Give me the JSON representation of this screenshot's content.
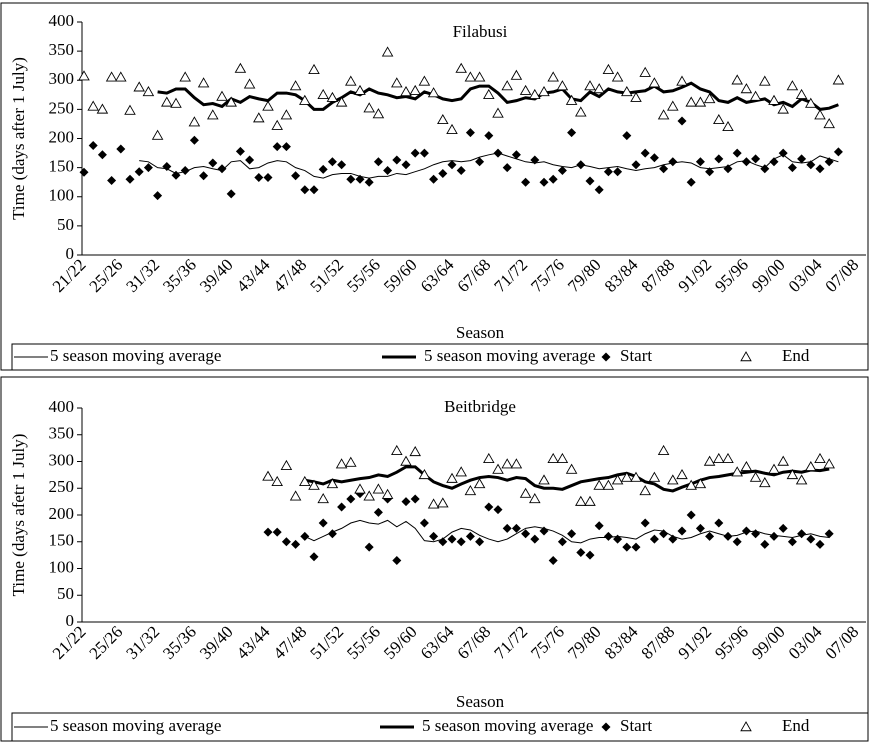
{
  "chart_data": [
    {
      "type": "combo",
      "title": "Filabusi",
      "ylabel": "Time (days after 1 July)",
      "xlabel": "Season",
      "ylim": [
        0,
        400
      ],
      "yticks": [
        0,
        50,
        100,
        150,
        200,
        250,
        300,
        350,
        400
      ],
      "categories": [
        "21/22",
        null,
        null,
        null,
        "25/26",
        null,
        null,
        null,
        "31/32",
        null,
        null,
        null,
        "35/36",
        null,
        null,
        null,
        "39/40",
        null,
        null,
        null,
        "43/44",
        null,
        null,
        null,
        "47/48",
        null,
        null,
        null,
        "51/52",
        null,
        null,
        null,
        "55/56",
        null,
        null,
        null,
        "59/60",
        null,
        null,
        null,
        "63/64",
        null,
        null,
        null,
        "67/68",
        null,
        null,
        null,
        "71/72",
        null,
        null,
        null,
        "75/76",
        null,
        null,
        null,
        "79/80",
        null,
        null,
        null,
        "83/84",
        null,
        null,
        null,
        "87/88",
        null,
        null,
        null,
        "91/92",
        null,
        null,
        null,
        "95/96",
        null,
        null,
        null,
        "99/00",
        null,
        null,
        null,
        "03/04",
        null,
        null,
        null,
        "07/08",
        null
      ],
      "series": [
        {
          "name": "5 season moving average",
          "color": "#000000",
          "line_width": 1,
          "marker": "none",
          "values": [
            null,
            null,
            null,
            null,
            null,
            null,
            162,
            160,
            150,
            148,
            140,
            143,
            150,
            152,
            148,
            145,
            160,
            162,
            148,
            150,
            158,
            162,
            160,
            150,
            145,
            135,
            132,
            138,
            140,
            140,
            135,
            132,
            135,
            135,
            140,
            138,
            143,
            148,
            155,
            160,
            162,
            160,
            162,
            168,
            172,
            175,
            170,
            165,
            160,
            158,
            160,
            155,
            152,
            150,
            155,
            152,
            148,
            150,
            152,
            148,
            145,
            148,
            150,
            155,
            158,
            160,
            158,
            150,
            148,
            150,
            152,
            160,
            162,
            155,
            150,
            165,
            172,
            160,
            158,
            160,
            170,
            165,
            160,
            null,
            null,
            null
          ]
        },
        {
          "name": "5 season moving average",
          "color": "#000000",
          "line_width": 3,
          "marker": "none",
          "values": [
            null,
            null,
            null,
            null,
            null,
            null,
            null,
            null,
            280,
            278,
            285,
            285,
            270,
            258,
            260,
            255,
            268,
            262,
            272,
            268,
            265,
            278,
            278,
            275,
            265,
            250,
            250,
            262,
            270,
            280,
            275,
            285,
            278,
            275,
            270,
            272,
            268,
            280,
            275,
            268,
            265,
            268,
            285,
            290,
            290,
            278,
            262,
            265,
            270,
            268,
            278,
            280,
            285,
            268,
            265,
            280,
            272,
            285,
            280,
            278,
            280,
            282,
            290,
            280,
            282,
            288,
            295,
            285,
            280,
            265,
            262,
            270,
            262,
            265,
            268,
            258,
            262,
            255,
            268,
            262,
            250,
            252,
            258,
            null,
            null,
            null
          ]
        },
        {
          "name": "Start",
          "color": "#000000",
          "line_width": 0,
          "marker": "diamond",
          "values": [
            142,
            188,
            172,
            128,
            182,
            130,
            143,
            150,
            102,
            152,
            137,
            145,
            197,
            136,
            158,
            148,
            105,
            178,
            163,
            133,
            133,
            186,
            186,
            136,
            112,
            112,
            147,
            160,
            155,
            130,
            130,
            125,
            160,
            145,
            163,
            155,
            175,
            175,
            130,
            140,
            155,
            145,
            210,
            160,
            205,
            175,
            150,
            172,
            125,
            163,
            125,
            130,
            145,
            210,
            155,
            127,
            112,
            143,
            143,
            205,
            155,
            175,
            167,
            148,
            160,
            230,
            125,
            160,
            143,
            165,
            148,
            175,
            160,
            165,
            148,
            160,
            175,
            150,
            165,
            155,
            148,
            160,
            177,
            null,
            null,
            null
          ]
        },
        {
          "name": "End",
          "color": "#000000",
          "line_width": 0,
          "marker": "triangle",
          "values": [
            307,
            255,
            250,
            305,
            305,
            248,
            288,
            280,
            205,
            262,
            260,
            305,
            228,
            295,
            240,
            272,
            262,
            320,
            293,
            235,
            255,
            222,
            240,
            290,
            265,
            318,
            275,
            270,
            262,
            298,
            282,
            252,
            242,
            348,
            295,
            280,
            282,
            298,
            278,
            232,
            215,
            320,
            305,
            305,
            275,
            243,
            290,
            308,
            282,
            275,
            280,
            305,
            290,
            265,
            245,
            290,
            285,
            318,
            305,
            280,
            270,
            313,
            295,
            240,
            255,
            298,
            262,
            262,
            268,
            232,
            220,
            300,
            285,
            272,
            298,
            265,
            250,
            290,
            275,
            260,
            240,
            225,
            300,
            null,
            null,
            null
          ]
        }
      ]
    },
    {
      "type": "combo",
      "title": "Beitbridge",
      "ylabel": "Time (days afetr 1 July)",
      "xlabel": "Season",
      "ylim": [
        0,
        400
      ],
      "yticks": [
        0,
        50,
        100,
        150,
        200,
        250,
        300,
        350,
        400
      ],
      "categories": [
        "21/22",
        null,
        null,
        null,
        "25/26",
        null,
        null,
        null,
        "31/32",
        null,
        null,
        null,
        "35/36",
        null,
        null,
        null,
        "39/40",
        null,
        null,
        null,
        "43/44",
        null,
        null,
        null,
        "47/48",
        null,
        null,
        null,
        "51/52",
        null,
        null,
        null,
        "55/56",
        null,
        null,
        null,
        "59/60",
        null,
        null,
        null,
        "63/64",
        null,
        null,
        null,
        "67/68",
        null,
        null,
        null,
        "71/72",
        null,
        null,
        null,
        "75/76",
        null,
        null,
        null,
        "79/80",
        null,
        null,
        null,
        "83/84",
        null,
        null,
        null,
        "87/88",
        null,
        null,
        null,
        "91/92",
        null,
        null,
        null,
        "95/96",
        null,
        null,
        null,
        "99/00",
        null,
        null,
        null,
        "03/04",
        null,
        null,
        null,
        "07/08",
        null
      ],
      "series": [
        {
          "name": "5 season moving average",
          "color": "#000000",
          "line_width": 1,
          "marker": "none",
          "values": [
            null,
            null,
            null,
            null,
            null,
            null,
            null,
            null,
            null,
            null,
            null,
            null,
            null,
            null,
            null,
            null,
            null,
            null,
            null,
            null,
            null,
            null,
            null,
            null,
            160,
            152,
            160,
            168,
            175,
            185,
            190,
            185,
            183,
            190,
            178,
            188,
            175,
            152,
            150,
            155,
            168,
            175,
            172,
            162,
            155,
            150,
            155,
            165,
            175,
            178,
            175,
            170,
            162,
            150,
            148,
            155,
            158,
            158,
            160,
            158,
            155,
            165,
            172,
            170,
            160,
            155,
            158,
            165,
            170,
            165,
            160,
            162,
            168,
            170,
            165,
            162,
            160,
            158,
            162,
            165,
            160,
            158,
            null,
            null,
            null,
            null
          ]
        },
        {
          "name": "5 season moving average",
          "color": "#000000",
          "line_width": 3,
          "marker": "none",
          "values": [
            null,
            null,
            null,
            null,
            null,
            null,
            null,
            null,
            null,
            null,
            null,
            null,
            null,
            null,
            null,
            null,
            null,
            null,
            null,
            null,
            null,
            null,
            null,
            null,
            265,
            262,
            258,
            265,
            262,
            265,
            268,
            270,
            275,
            272,
            280,
            290,
            290,
            275,
            262,
            255,
            250,
            258,
            265,
            270,
            272,
            270,
            265,
            270,
            268,
            255,
            250,
            250,
            248,
            255,
            262,
            265,
            268,
            270,
            275,
            278,
            272,
            262,
            258,
            248,
            245,
            252,
            258,
            265,
            270,
            272,
            275,
            278,
            280,
            282,
            278,
            275,
            280,
            282,
            280,
            284,
            283,
            286,
            null,
            null,
            null,
            null
          ]
        },
        {
          "name": "Start",
          "color": "#000000",
          "line_width": 0,
          "marker": "diamond",
          "values": [
            null,
            null,
            null,
            null,
            null,
            null,
            null,
            null,
            null,
            null,
            null,
            null,
            null,
            null,
            null,
            null,
            null,
            null,
            null,
            null,
            168,
            168,
            150,
            145,
            160,
            122,
            185,
            165,
            215,
            230,
            240,
            140,
            205,
            230,
            115,
            225,
            230,
            185,
            160,
            150,
            155,
            150,
            160,
            150,
            215,
            210,
            175,
            175,
            165,
            155,
            170,
            115,
            150,
            165,
            130,
            125,
            180,
            160,
            155,
            140,
            140,
            185,
            155,
            165,
            155,
            170,
            200,
            175,
            160,
            185,
            160,
            150,
            170,
            165,
            145,
            160,
            175,
            150,
            165,
            155,
            145,
            165,
            null,
            null,
            null,
            null
          ]
        },
        {
          "name": "End",
          "color": "#000000",
          "line_width": 0,
          "marker": "triangle",
          "values": [
            null,
            null,
            null,
            null,
            null,
            null,
            null,
            null,
            null,
            null,
            null,
            null,
            null,
            null,
            null,
            null,
            null,
            null,
            null,
            null,
            272,
            262,
            292,
            235,
            262,
            255,
            230,
            258,
            295,
            298,
            248,
            235,
            248,
            238,
            320,
            300,
            318,
            275,
            220,
            222,
            268,
            280,
            245,
            258,
            305,
            285,
            295,
            295,
            240,
            230,
            265,
            305,
            305,
            285,
            225,
            225,
            255,
            255,
            265,
            270,
            270,
            245,
            270,
            320,
            265,
            275,
            255,
            258,
            300,
            305,
            305,
            280,
            290,
            270,
            260,
            285,
            300,
            275,
            265,
            290,
            305,
            295,
            null,
            null,
            null,
            null
          ]
        }
      ]
    }
  ]
}
